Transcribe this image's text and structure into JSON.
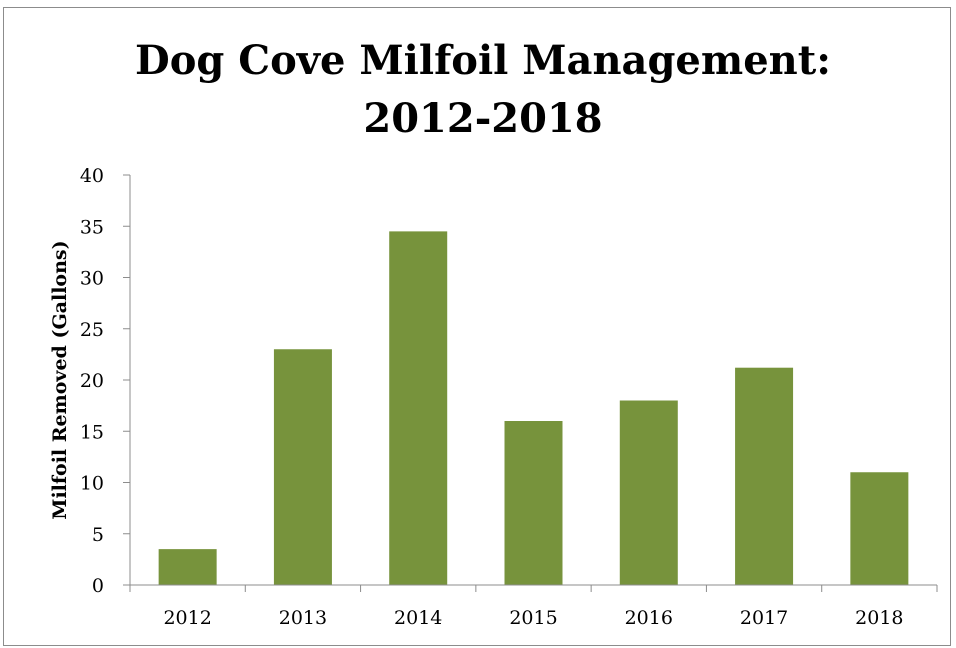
{
  "chart_data": {
    "type": "bar",
    "title_lines": [
      "Dog Cove Milfoil Management:",
      "2012-2018"
    ],
    "xlabel": "",
    "ylabel": "Milfoil Removed (Gallons)",
    "categories": [
      "2012",
      "2013",
      "2014",
      "2015",
      "2016",
      "2017",
      "2018"
    ],
    "values": [
      3.5,
      23,
      34.5,
      16,
      18,
      21.2,
      11
    ],
    "ylim": [
      0,
      40
    ],
    "yticks": [
      0,
      5,
      10,
      15,
      20,
      25,
      30,
      35,
      40
    ],
    "grid": false,
    "legend": "none",
    "bar_color": "#77933c",
    "axis_color": "#8c8c8c"
  }
}
